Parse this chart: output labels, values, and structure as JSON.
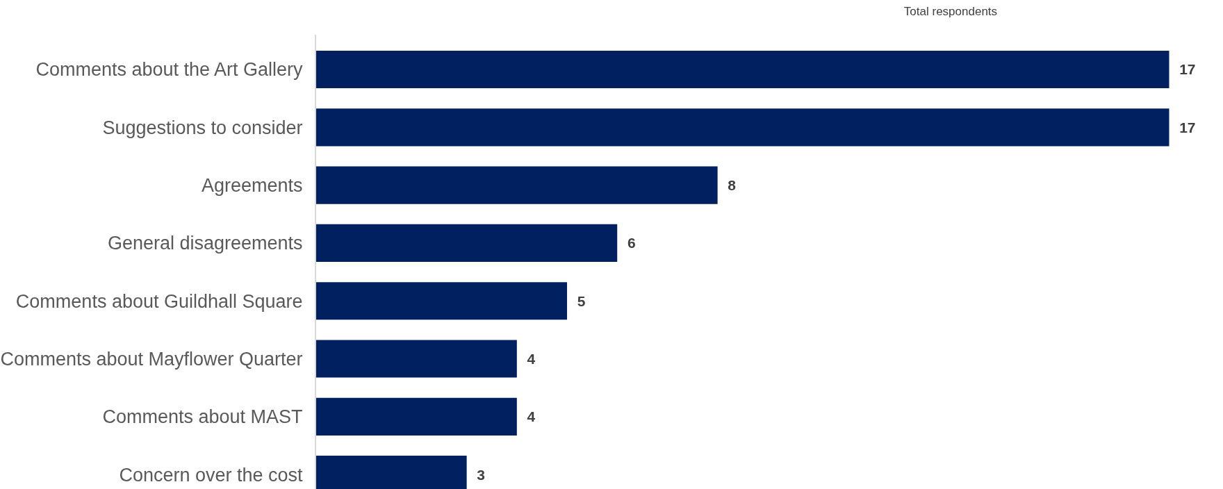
{
  "chart_data": {
    "type": "bar",
    "orientation": "horizontal",
    "title": "Total respondents",
    "categories": [
      "Comments about the Art Gallery",
      "Suggestions to consider",
      "Agreements",
      "General disagreements",
      "Comments about Guildhall Square",
      "Comments about Mayflower Quarter",
      "Comments about MAST",
      "Concern over the cost"
    ],
    "values": [
      17,
      17,
      8,
      6,
      5,
      4,
      4,
      3
    ],
    "color": "#002060",
    "data_labels": true
  }
}
